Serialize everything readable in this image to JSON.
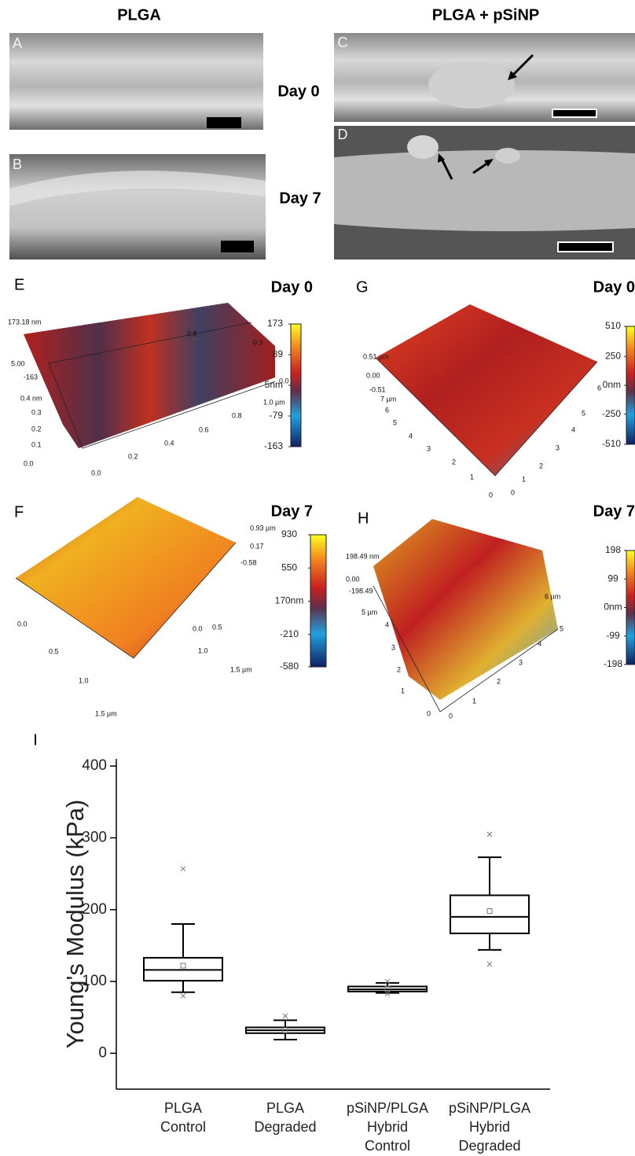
{
  "figure": {
    "headers": [
      "PLGA",
      "PLGA + pSiNP"
    ],
    "sem_days": [
      "Day 0",
      "Day 7"
    ],
    "sem_panels": [
      {
        "label": "A"
      },
      {
        "label": "B"
      },
      {
        "label": "C"
      },
      {
        "label": "D"
      }
    ],
    "afm_panels": [
      {
        "label": "E",
        "day": "Day 0",
        "clim": [
          -163,
          173
        ],
        "cticks": [
          173,
          89,
          {
            "value": 5,
            "label": "5nm"
          },
          -79,
          -163
        ],
        "axis_texts": [
          "173.18 nm",
          "5.00",
          "-163",
          "0.4 nm",
          "0.3",
          "0.2",
          "0.1",
          "0.0",
          "0.0",
          "0.2",
          "0.4",
          "0.6",
          "0.8",
          "1.0 µm",
          "0.0",
          "0.8",
          "0.3"
        ]
      },
      {
        "label": "G",
        "day": "Day 0",
        "clim": [
          -510,
          510
        ],
        "cticks": [
          510,
          250,
          {
            "value": 0,
            "label": "0nm"
          },
          -250,
          -510
        ],
        "axis_texts": [
          "0.51 µm",
          "0.00",
          "-0.51",
          "7 µm",
          "6",
          "5",
          "4",
          "3",
          "2",
          "1",
          "0",
          "0",
          "1",
          "2",
          "3",
          "4",
          "5",
          "6",
          "7 µm"
        ]
      },
      {
        "label": "F",
        "day": "Day 7",
        "clim": [
          -580,
          930
        ],
        "cticks": [
          930,
          550,
          {
            "value": 170,
            "label": "170nm"
          },
          -210,
          -580
        ],
        "axis_texts": [
          "0.93 µm",
          "0.17",
          "-0.58",
          "0.0",
          "0.5",
          "1.0",
          "1.5 µm",
          "0.0",
          "0.5",
          "1.0",
          "1.5 µm"
        ]
      },
      {
        "label": "H",
        "day": "Day 7",
        "clim": [
          -198,
          198
        ],
        "cticks": [
          198,
          99,
          {
            "value": 0,
            "label": "0nm"
          },
          -99,
          -198
        ],
        "axis_texts": [
          "198.49 nm",
          "0.00",
          "-198.49",
          "5 µm",
          "4",
          "3",
          "2",
          "1",
          "0",
          "0",
          "1",
          "2",
          "3",
          "4",
          "5",
          "6 µm"
        ]
      }
    ],
    "panel_I": "I"
  },
  "chart_data": {
    "type": "box",
    "ylabel": "Young's Modulus (kPa)",
    "categories": [
      "PLGA Control",
      "PLGA Degraded",
      "pSiNP/PLGA Hybrid Control",
      "pSiNP/PLGA Hybrid Degraded"
    ],
    "boxes": [
      {
        "min": 85,
        "q1": 101,
        "median": 116,
        "q3": 133,
        "max": 180,
        "mean": 122,
        "outliers": [
          257,
          80
        ]
      },
      {
        "min": 19,
        "q1": 28,
        "median": 32,
        "q3": 36,
        "max": 46,
        "mean": 32,
        "outliers": [
          52
        ]
      },
      {
        "min": 84,
        "q1": 86,
        "median": 89,
        "q3": 93,
        "max": 98,
        "mean": 90,
        "outliers": [
          100,
          83
        ]
      },
      {
        "min": 144,
        "q1": 167,
        "median": 190,
        "q3": 220,
        "max": 273,
        "mean": 198,
        "outliers": [
          305,
          124
        ]
      }
    ],
    "ylim": [
      -50,
      410
    ],
    "yticks": [
      0,
      100,
      200,
      300,
      400
    ],
    "color": "#000000"
  }
}
